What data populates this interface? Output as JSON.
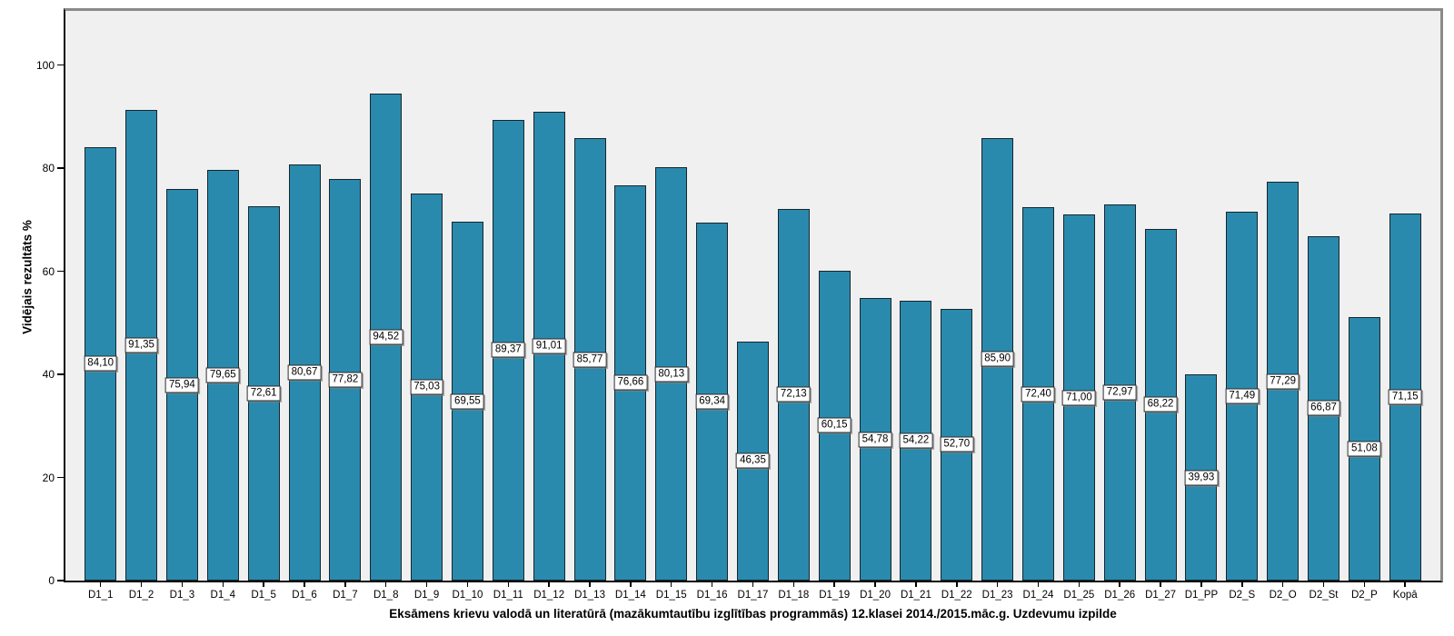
{
  "chart_data": {
    "type": "bar",
    "title": "",
    "xlabel": "Eksāmens krievu valodā un literatūrā (mazākumtautību izglītības programmās) 12.klasei 2014./2015.māc.g. Uzdevumu izpilde",
    "ylabel": "Vidējais rezultāts %",
    "ylim": [
      0,
      110
    ],
    "yticks": [
      0,
      20,
      40,
      60,
      80,
      100
    ],
    "grid": false,
    "legend": "none",
    "bar_color": "#2a8aad",
    "bar_border_color": "#16262e",
    "plot_background": "#f0f0f0",
    "frame_color": "#8a8a8a",
    "axis_color": "#000000",
    "categories": [
      "D1_1",
      "D1_2",
      "D1_3",
      "D1_4",
      "D1_5",
      "D1_6",
      "D1_7",
      "D1_8",
      "D1_9",
      "D1_10",
      "D1_11",
      "D1_12",
      "D1_13",
      "D1_14",
      "D1_15",
      "D1_16",
      "D1_17",
      "D1_18",
      "D1_19",
      "D1_20",
      "D1_21",
      "D1_22",
      "D1_23",
      "D1_24",
      "D1_25",
      "D1_26",
      "D1_27",
      "D1_PP",
      "D2_S",
      "D2_O",
      "D2_St",
      "D2_P",
      "Kopā"
    ],
    "values": [
      84.1,
      91.35,
      75.94,
      79.65,
      72.61,
      80.67,
      77.82,
      94.52,
      75.03,
      69.55,
      89.37,
      91.01,
      85.77,
      76.66,
      80.13,
      69.34,
      46.35,
      72.13,
      60.15,
      54.78,
      54.22,
      52.7,
      85.9,
      72.4,
      71.0,
      72.97,
      68.22,
      39.93,
      71.49,
      77.29,
      66.87,
      51.08,
      71.15
    ],
    "value_labels": [
      "84,10",
      "91,35",
      "75,94",
      "79,65",
      "72,61",
      "80,67",
      "77,82",
      "94,52",
      "75,03",
      "69,55",
      "89,37",
      "91,01",
      "85,77",
      "76,66",
      "80,13",
      "69,34",
      "46,35",
      "72,13",
      "60,15",
      "54,78",
      "54,22",
      "52,70",
      "85,90",
      "72,40",
      "71,00",
      "72,97",
      "68,22",
      "39,93",
      "71,49",
      "77,29",
      "66,87",
      "51,08",
      "71,15"
    ]
  }
}
